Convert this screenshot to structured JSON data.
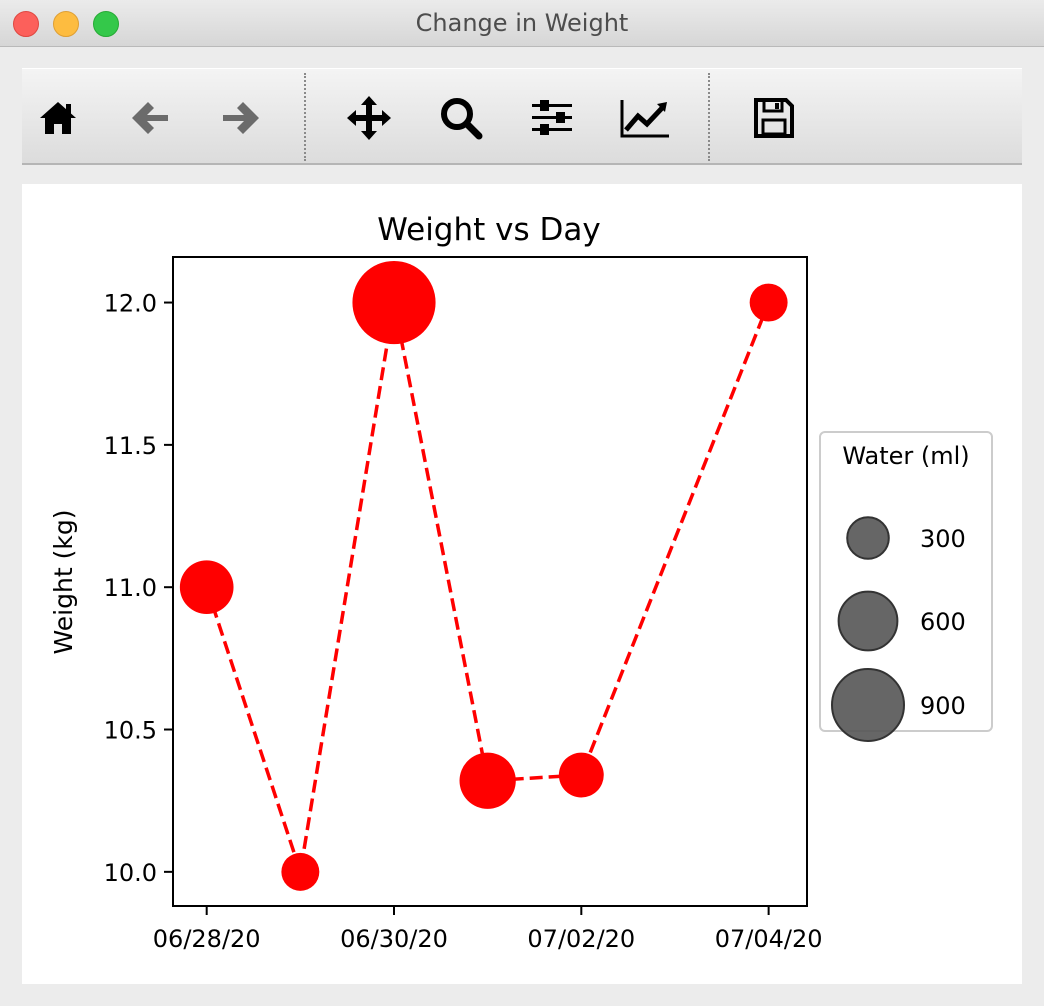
{
  "window": {
    "title": "Change in Weight"
  },
  "toolbar": {
    "buttons": [
      {
        "name": "home-button",
        "icon": "home-icon"
      },
      {
        "name": "back-button",
        "icon": "arrow-left-icon"
      },
      {
        "name": "forward-button",
        "icon": "arrow-right-icon"
      },
      {
        "name": "pan-button",
        "icon": "move-icon"
      },
      {
        "name": "zoom-button",
        "icon": "zoom-icon"
      },
      {
        "name": "subplots-button",
        "icon": "sliders-icon"
      },
      {
        "name": "edit-axis-button",
        "icon": "line-chart-icon"
      },
      {
        "name": "save-button",
        "icon": "save-icon"
      }
    ]
  },
  "chart_data": {
    "type": "scatter",
    "title": "Weight vs Day",
    "xlabel": "",
    "ylabel": "Weight (kg)",
    "x": [
      "06/28/20",
      "06/29/20",
      "06/30/20",
      "07/01/20",
      "07/02/20",
      "07/04/20"
    ],
    "y": [
      11.0,
      10.0,
      12.0,
      10.32,
      10.34,
      12.0
    ],
    "sizes": [
      500,
      250,
      1200,
      550,
      350,
      250
    ],
    "x_ticks": [
      "06/28/20",
      "06/30/20",
      "07/02/20",
      "07/04/20"
    ],
    "y_ticks": [
      10.0,
      10.5,
      11.0,
      11.5,
      12.0
    ],
    "y_tick_labels": [
      "10.0",
      "10.5",
      "11.0",
      "11.5",
      "12.0"
    ],
    "ylim": [
      9.88,
      12.16
    ],
    "xlim": [
      "06/27/20 15:22",
      "07/04/20 09:50"
    ],
    "line_style": "dashed",
    "color": "#ff0000",
    "legend": {
      "title": "Water (ml)",
      "placement": "right",
      "entries": [
        {
          "label": "300",
          "size": 300
        },
        {
          "label": "600",
          "size": 600
        },
        {
          "label": "900",
          "size": 900
        }
      ],
      "color": "#555555"
    }
  }
}
